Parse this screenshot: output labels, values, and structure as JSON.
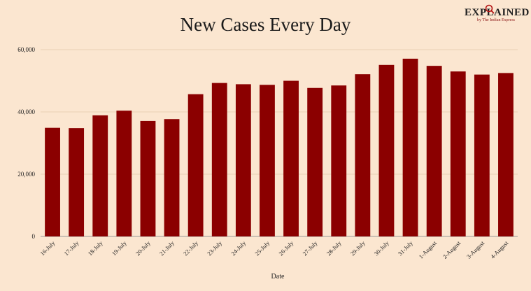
{
  "brand": {
    "word": "EXPLAINED",
    "byline": "by The Indian Express"
  },
  "chart_data": {
    "type": "bar",
    "title": "New Cases Every Day",
    "xlabel": "Date",
    "ylabel": "",
    "ylim": [
      0,
      60000
    ],
    "yticks": [
      0,
      20000,
      40000,
      60000
    ],
    "ytick_labels": [
      "0",
      "20,000",
      "40,000",
      "60,000"
    ],
    "grid": true,
    "bar_color": "#8b0000",
    "categories": [
      "16-July",
      "17-July",
      "18-July",
      "19-July",
      "20-July",
      "21-July",
      "22-July",
      "23-July",
      "24-July",
      "25-July",
      "26-July",
      "27-July",
      "28-July",
      "29-July",
      "30-July",
      "31-July",
      "1-August",
      "2-August",
      "3-August",
      "4-August"
    ],
    "values": [
      34900,
      34800,
      38900,
      40400,
      37100,
      37700,
      45700,
      49300,
      48900,
      48700,
      50000,
      47700,
      48500,
      52100,
      55100,
      57100,
      54800,
      53000,
      52000,
      52500
    ]
  }
}
